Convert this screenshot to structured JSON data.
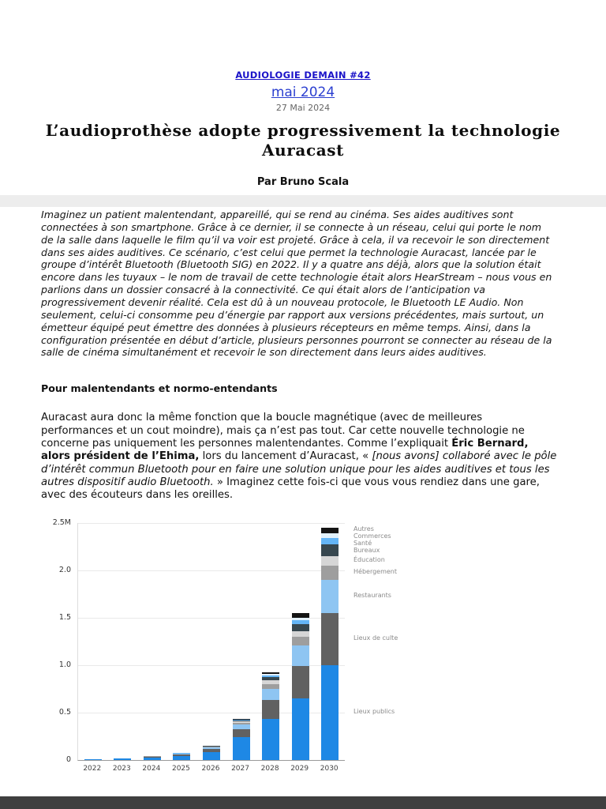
{
  "page": {
    "publication_link": "AUDIOLOGIE DEMAIN #42",
    "issue_link": "mai 2024",
    "date_label": "27 Mai 2024",
    "title": "L’audioprothèse adopte progressivement la technologie Auracast",
    "byline": "Par Bruno Scala"
  },
  "article": {
    "intro": "Imaginez un patient malentendant, appareillé, qui se rend au cinéma. Ses aides auditives sont connectées à son smartphone. Grâce à ce dernier, il se connecte à un réseau, celui qui porte le nom de la salle dans laquelle le film qu’il va voir est projeté. Grâce à cela, il va recevoir le son directement dans ses aides auditives. Ce scénario, c’est celui que permet la technologie Auracast, lancée par le groupe d’intérêt Bluetooth (Bluetooth SIG) en 2022. Il y a quatre ans déjà, alors que la solution était encore dans les tuyaux – le nom de travail de cette technologie était alors HearStream – nous vous en parlions dans un dossier consacré à la connectivité. Ce qui était alors de l’anticipation va progressivement devenir réalité. Cela est dû à un nouveau protocole, le Bluetooth LE Audio. Non seulement, celui-ci consomme peu d’énergie par rapport aux versions précédentes, mais surtout, un émetteur équipé peut émettre des données à plusieurs récepteurs en même temps. Ainsi, dans la configuration présentée en début d’article, plusieurs personnes pourront se connecter au réseau de la salle de cinéma simultanément et recevoir le son directement dans leurs aides auditives.",
    "section_heading": "Pour malentendants et normo-entendants",
    "paragraph2_segments": [
      {
        "text": "Auracast aura donc la même fonction que la boucle magnétique (avec de meilleures performances et un cout moindre), mais ça n’est pas tout. Car cette nouvelle technologie ne concerne pas uniquement les personnes malentendantes. Comme l’expliquait ",
        "style": "regular"
      },
      {
        "text": "Éric Bernard, alors président de l’Ehima,",
        "style": "bold"
      },
      {
        "text": " lors du lancement d’Auracast, « ",
        "style": "regular"
      },
      {
        "text": "[nous avons] collaboré avec le pôle d’intérêt commun Bluetooth pour en faire une solution unique pour les aides auditives et tous les autres dispositif audio Bluetooth.",
        "style": "italic"
      },
      {
        "text": " » Imaginez cette fois-ci que vous vous rendiez dans une gare, avec des écouteurs dans les oreilles.",
        "style": "regular"
      }
    ]
  },
  "chart_data": {
    "type": "bar",
    "stacked": true,
    "title": "",
    "xlabel": "",
    "ylabel": "",
    "unit": "millions",
    "ylim": [
      0,
      2.5
    ],
    "ytick_labels": [
      "0",
      "0.5",
      "1.0",
      "1.5",
      "2.0",
      "2.5M"
    ],
    "categories": [
      "2022",
      "2023",
      "2024",
      "2025",
      "2026",
      "2027",
      "2028",
      "2029",
      "2030"
    ],
    "series": [
      {
        "name": "Lieux publics",
        "color": "#1e88e5",
        "values": [
          0.006,
          0.012,
          0.022,
          0.04,
          0.08,
          0.24,
          0.43,
          0.65,
          1.0
        ]
      },
      {
        "name": "Lieux de culte",
        "color": "#616161",
        "values": [
          0.002,
          0.004,
          0.008,
          0.014,
          0.032,
          0.08,
          0.2,
          0.34,
          0.55
        ]
      },
      {
        "name": "Restaurants",
        "color": "#8ec5f2",
        "values": [
          0.001,
          0.002,
          0.005,
          0.008,
          0.018,
          0.05,
          0.12,
          0.22,
          0.35
        ]
      },
      {
        "name": "Hébergement",
        "color": "#9e9e9e",
        "values": [
          0.0,
          0.001,
          0.002,
          0.003,
          0.007,
          0.02,
          0.05,
          0.09,
          0.15
        ]
      },
      {
        "name": "Éducation",
        "color": "#d6d6d6",
        "values": [
          0.0,
          0.0,
          0.001,
          0.002,
          0.005,
          0.015,
          0.04,
          0.06,
          0.1
        ]
      },
      {
        "name": "Bureaux",
        "color": "#37474f",
        "values": [
          0.0,
          0.0,
          0.001,
          0.002,
          0.004,
          0.012,
          0.035,
          0.07,
          0.12
        ]
      },
      {
        "name": "Santé",
        "color": "#64b5f6",
        "values": [
          0.0,
          0.0,
          0.0,
          0.001,
          0.002,
          0.006,
          0.018,
          0.04,
          0.07
        ]
      },
      {
        "name": "Commerces",
        "color": "#e3f2fd",
        "values": [
          0.0,
          0.0,
          0.0,
          0.001,
          0.001,
          0.004,
          0.012,
          0.03,
          0.05
        ]
      },
      {
        "name": "Autres",
        "color": "#141414",
        "values": [
          0.0,
          0.0,
          0.001,
          0.001,
          0.002,
          0.006,
          0.02,
          0.05,
          0.06
        ]
      }
    ],
    "legend_order_top_to_bottom": [
      "Autres",
      "Commerces",
      "Santé",
      "Bureaux",
      "Éducation",
      "Hébergement",
      "Restaurants",
      "Lieux de culte",
      "Lieux publics"
    ],
    "legend_position": "right",
    "grid": true
  },
  "colors": {
    "publication_link": "#1a12c8",
    "issue_link": "#2b3fd0",
    "divider_band": "#ededed",
    "footer_bar": "#3f3f3f"
  }
}
